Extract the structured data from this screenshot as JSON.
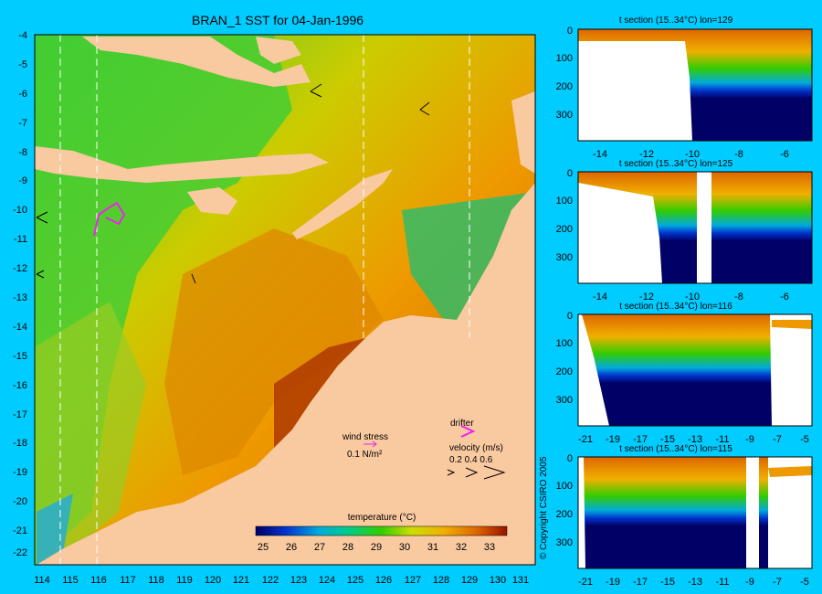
{
  "map": {
    "title": "BRAN_1 SST for 04-Jan-1996",
    "lat_labels": [
      "-4",
      "-5",
      "-6",
      "-7",
      "-8",
      "-9",
      "-10",
      "-11",
      "-12",
      "-13",
      "-14",
      "-15",
      "-16",
      "-17",
      "-18",
      "-19",
      "-20",
      "-21",
      "-22"
    ],
    "lon_labels": [
      "114",
      "115",
      "116",
      "117",
      "118",
      "119",
      "120",
      "121",
      "122",
      "123",
      "124",
      "125",
      "126",
      "127",
      "128",
      "129",
      "130",
      "131"
    ],
    "colorbar": {
      "title": "temperature (°C)",
      "ticks": [
        "25",
        "26",
        "27",
        "28",
        "29",
        "30",
        "31",
        "32",
        "33"
      ]
    },
    "wind_legend": {
      "label": "wind stress",
      "value": "0.1 N/m²"
    },
    "drifter_legend": {
      "label": "drifter"
    },
    "velocity_legend": {
      "label": "velocity (m/s)",
      "values": "0.2 0.4 0.6"
    },
    "colors": {
      "land": "#f9c9a0",
      "background": "#00ccff",
      "drifter": "#ee22ee"
    }
  },
  "sections": [
    {
      "title": "t section (15..34°C) lon=129",
      "x_ticks": [
        "-14",
        "-12",
        "-10",
        "-8",
        "-6"
      ],
      "y_ticks": [
        "0",
        "100",
        "200",
        "300"
      ]
    },
    {
      "title": "t section (15..34°C) lon=125",
      "x_ticks": [
        "-14",
        "-12",
        "-10",
        "-8",
        "-6"
      ],
      "y_ticks": [
        "0",
        "100",
        "200",
        "300"
      ]
    },
    {
      "title": "t section (15..34°C) lon=116",
      "x_ticks": [
        "-21",
        "-19",
        "-17",
        "-15",
        "-13",
        "-11",
        "-9",
        "-7",
        "-5"
      ],
      "y_ticks": [
        "0",
        "100",
        "200",
        "300"
      ]
    },
    {
      "title": "t section (15..34°C) lon=115",
      "x_ticks": [
        "-21",
        "-19",
        "-17",
        "-15",
        "-13",
        "-11",
        "-9",
        "-7",
        "-5"
      ],
      "y_ticks": [
        "0",
        "100",
        "200",
        "300"
      ]
    }
  ],
  "copyright": "© Copyright CSIRO 2005"
}
